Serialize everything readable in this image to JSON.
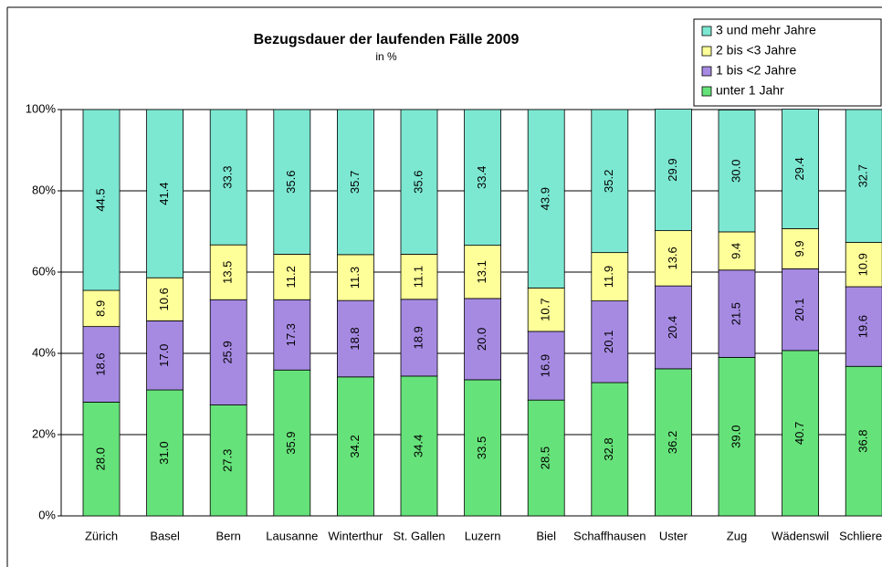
{
  "chart_data": {
    "type": "stacked-bar",
    "title": "Bezugsdauer der laufenden Fälle 2009",
    "subtitle": "in %",
    "categories": [
      "Zürich",
      "Basel",
      "Bern",
      "Lausanne",
      "Winterthur",
      "St. Gallen",
      "Luzern",
      "Biel",
      "Schaffhausen",
      "Uster",
      "Zug",
      "Wädenswil",
      "Schlieren"
    ],
    "series": [
      {
        "name": "unter 1 Jahr",
        "color": "#66e27a",
        "values": [
          28.0,
          31.0,
          27.3,
          35.9,
          34.2,
          34.4,
          33.5,
          28.5,
          32.8,
          36.2,
          39.0,
          40.7,
          36.8
        ],
        "value_labels": [
          "28.0",
          "31.0",
          "27.3",
          "35.9",
          "34.2",
          "34.4",
          "33.5",
          "28.5",
          "32.8",
          "36.2",
          "39.0",
          "40.7",
          "36.8"
        ]
      },
      {
        "name": "1 bis <2 Jahre",
        "color": "#a68ae2",
        "values": [
          18.6,
          17.0,
          25.9,
          17.3,
          18.8,
          18.9,
          20.0,
          16.9,
          20.1,
          20.4,
          21.5,
          20.1,
          19.6
        ],
        "value_labels": [
          "18.6",
          "17.0",
          "25.9",
          "17.3",
          "18.8",
          "18.9",
          "20.0",
          "16.9",
          "20.1",
          "20.4",
          "21.5",
          "20.1",
          "19.6"
        ]
      },
      {
        "name": "2 bis <3 Jahre",
        "color": "#ffff99",
        "values": [
          8.9,
          10.6,
          13.5,
          11.2,
          11.3,
          11.1,
          13.1,
          10.7,
          11.9,
          13.6,
          9.4,
          9.9,
          10.9
        ],
        "value_labels": [
          "8.9",
          "10.6",
          "13.5",
          "11.2",
          "11.3",
          "11.1",
          "13.1",
          "10.7",
          "11.9",
          "13.6",
          "9.4",
          "9.9",
          "10.9"
        ]
      },
      {
        "name": "3 und mehr Jahre",
        "color": "#7de8d2",
        "values": [
          44.5,
          41.4,
          33.3,
          35.6,
          35.7,
          35.6,
          33.4,
          43.9,
          35.2,
          29.9,
          30.0,
          29.4,
          32.7
        ],
        "value_labels": [
          "44.5",
          "41.4",
          "33.3",
          "35.6",
          "35.7",
          "35.6",
          "33.4",
          "43.9",
          "35.2",
          "29.9",
          "30.0",
          "29.4",
          "32.7"
        ]
      }
    ],
    "ylim": [
      0,
      100
    ],
    "yticks": [
      {
        "value": 0,
        "label": "0%"
      },
      {
        "value": 20,
        "label": "20%"
      },
      {
        "value": 40,
        "label": "40%"
      },
      {
        "value": 60,
        "label": "60%"
      },
      {
        "value": 80,
        "label": "80%"
      },
      {
        "value": 100,
        "label": "100%"
      }
    ],
    "grid": true,
    "legend": "top-right"
  }
}
